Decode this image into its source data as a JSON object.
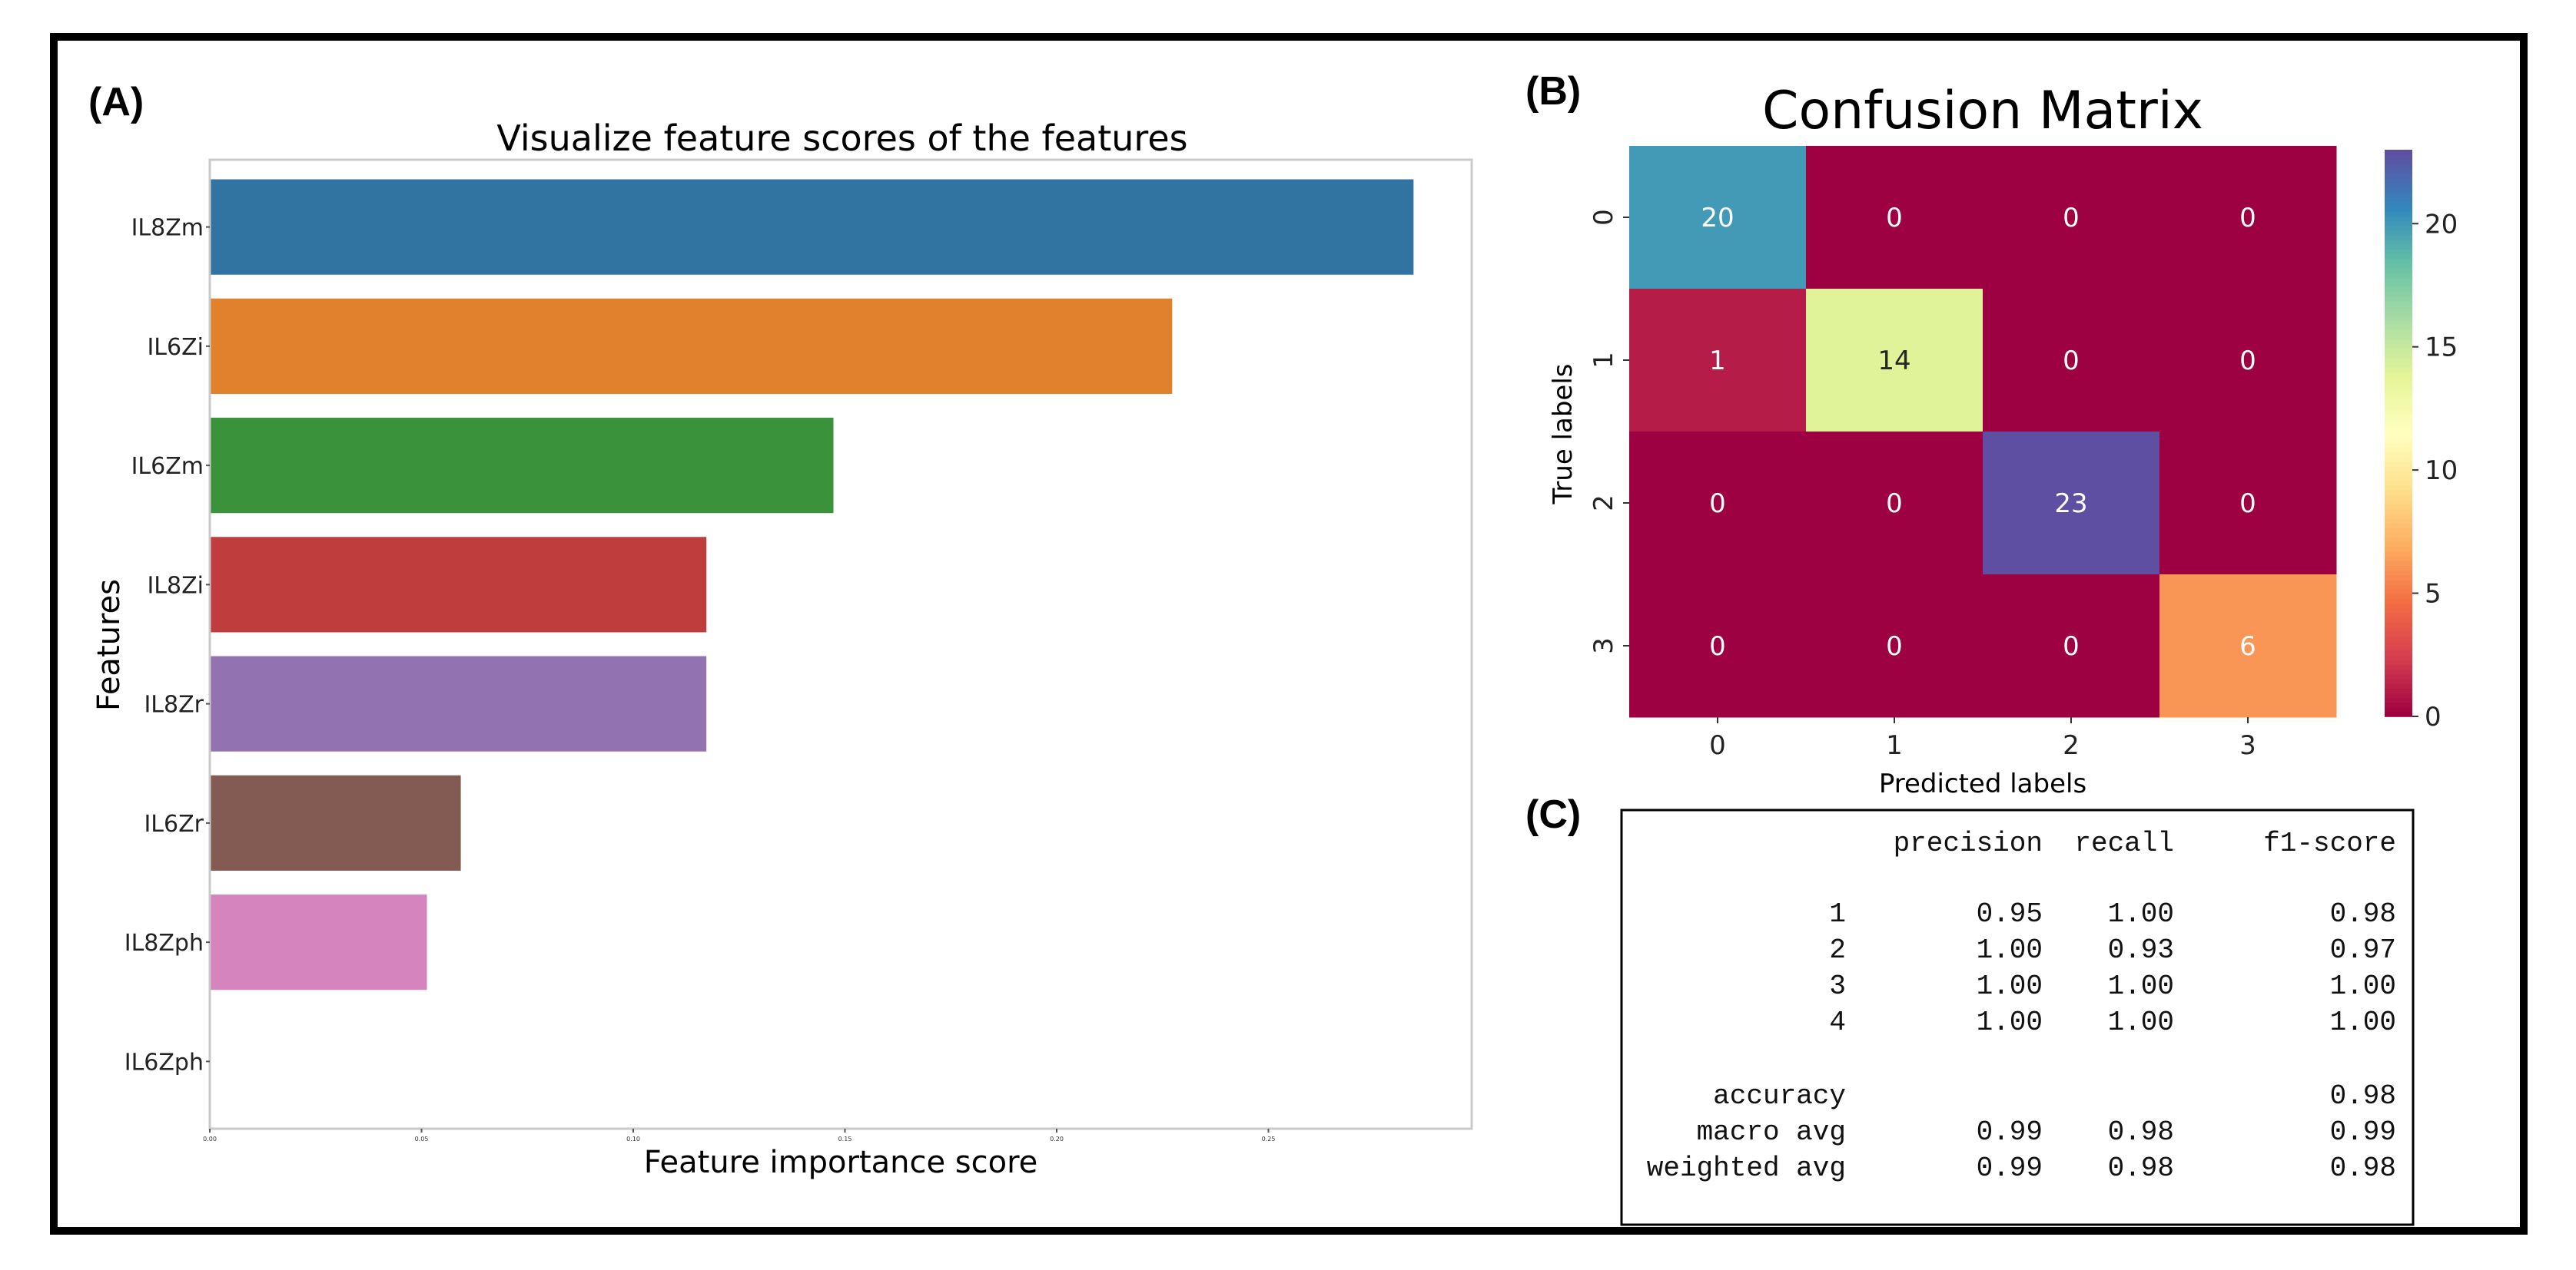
{
  "panels": {
    "a": "(A)",
    "b": "(B)",
    "c": "(C)"
  },
  "colors": {
    "frame": "#000000",
    "axes": "#bfbfbf"
  },
  "chart_data": [
    {
      "type": "bar",
      "orientation": "horizontal",
      "title": "Visualize feature scores of the features",
      "xlabel": "Feature importance score",
      "ylabel": "Features",
      "categories": [
        "IL8Zm",
        "IL6Zi",
        "IL6Zm",
        "IL8Zi",
        "IL8Zr",
        "IL6Zr",
        "IL8Zph",
        "IL6Zph"
      ],
      "values": [
        0.284,
        0.227,
        0.147,
        0.117,
        0.117,
        0.059,
        0.051,
        0.0
      ],
      "bar_colors": [
        "#3274a1",
        "#e1812c",
        "#3a923a",
        "#c03d3e",
        "#9372b2",
        "#845b53",
        "#d684bd",
        "#7f7f7f"
      ],
      "xlim": [
        0,
        0.298
      ],
      "xticks": [
        0.0,
        0.05,
        0.1,
        0.15,
        0.2,
        0.25
      ],
      "xtick_labels": [
        "0.00",
        "0.05",
        "0.10",
        "0.15",
        "0.20",
        "0.25"
      ]
    },
    {
      "type": "heatmap",
      "title": "Confusion Matrix",
      "xlabel": "Predicted labels",
      "ylabel": "True labels",
      "x_labels": [
        "0",
        "1",
        "2",
        "3"
      ],
      "y_labels": [
        "0",
        "1",
        "2",
        "3"
      ],
      "matrix": [
        [
          20,
          0,
          0,
          0
        ],
        [
          1,
          14,
          0,
          0
        ],
        [
          0,
          0,
          23,
          0
        ],
        [
          0,
          0,
          0,
          6
        ]
      ],
      "colormap": "Spectral",
      "vmin": 0,
      "vmax": 23,
      "colorbar_ticks": [
        0,
        5,
        10,
        15,
        20
      ],
      "colorbar_tick_labels": [
        "0",
        "5",
        "10",
        "15",
        "20"
      ]
    },
    {
      "type": "table",
      "columns": [
        "",
        "precision",
        "recall",
        "f1-score"
      ],
      "rows": [
        [
          "1",
          "0.95",
          "1.00",
          "0.98"
        ],
        [
          "2",
          "1.00",
          "0.93",
          "0.97"
        ],
        [
          "3",
          "1.00",
          "1.00",
          "1.00"
        ],
        [
          "4",
          "1.00",
          "1.00",
          "1.00"
        ]
      ],
      "summary_rows": [
        [
          "accuracy",
          "",
          "",
          "0.98"
        ],
        [
          "macro avg",
          "0.99",
          "0.98",
          "0.99"
        ],
        [
          "weighted avg",
          "0.99",
          "0.98",
          "0.98"
        ]
      ]
    }
  ]
}
